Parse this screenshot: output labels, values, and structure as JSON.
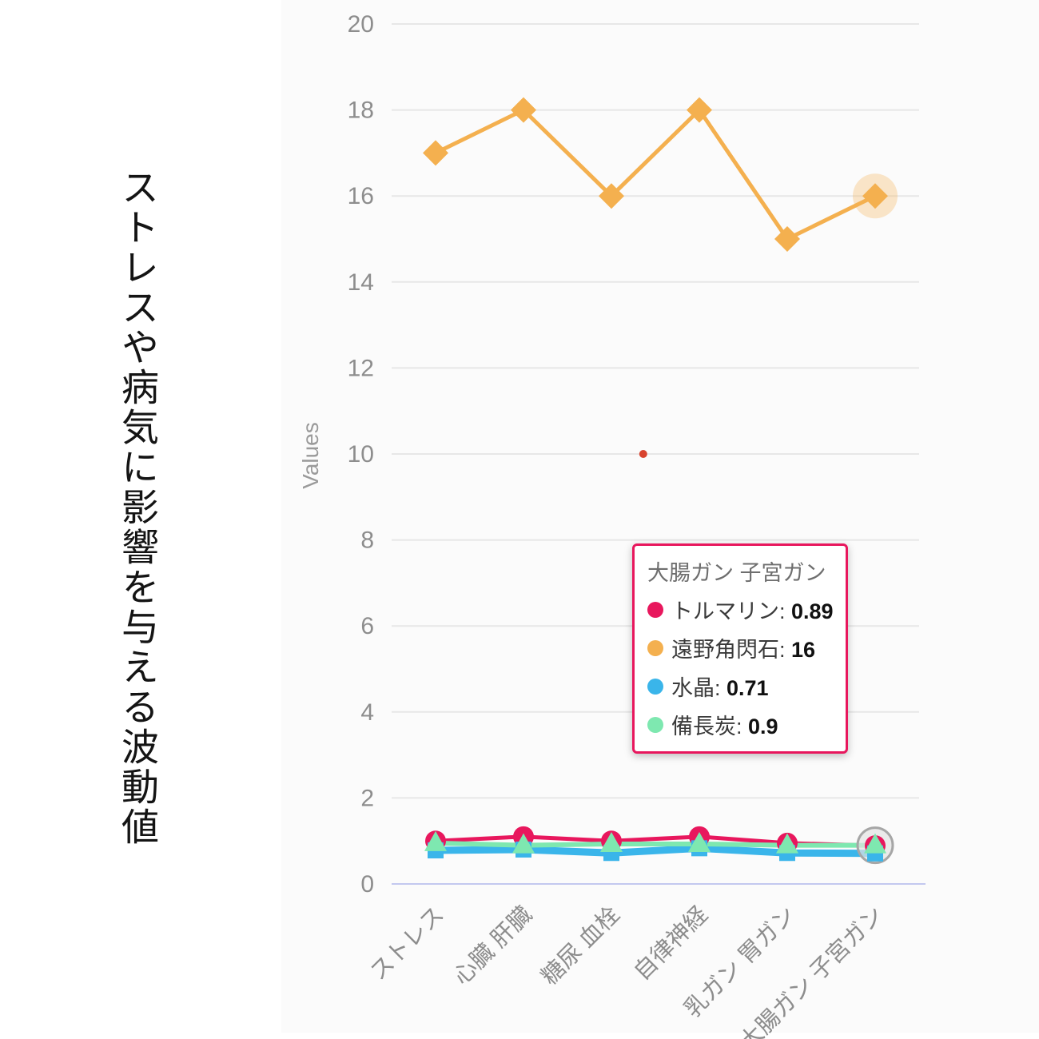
{
  "page_title": "ストレスや病気に影響を与える波動値",
  "chart_data": {
    "type": "line",
    "title": "",
    "ylabel": "Values",
    "xlabel": "",
    "ylim": [
      0,
      20
    ],
    "yticks": [
      0,
      2,
      4,
      6,
      8,
      10,
      12,
      14,
      16,
      18,
      20
    ],
    "grid": true,
    "legend_position": "none",
    "categories": [
      "ストレス",
      "心臓 肝臓",
      "糖尿 血栓",
      "自律神経",
      "乳ガン 胃ガン",
      "大腸ガン 子宮ガン"
    ],
    "series": [
      {
        "name": "トルマリン",
        "color": "#e8175d",
        "marker": "circle",
        "line_width": 5,
        "values": [
          1.0,
          1.1,
          1.0,
          1.1,
          0.95,
          0.89
        ]
      },
      {
        "name": "遠野角閃石",
        "color": "#f4b04f",
        "marker": "diamond",
        "line_width": 5,
        "values": [
          17,
          18,
          16,
          18,
          15,
          16
        ],
        "highlight_last": true
      },
      {
        "name": "水晶",
        "color": "#3ab5ea",
        "marker": "square",
        "line_width": 9,
        "values": [
          0.78,
          0.8,
          0.72,
          0.83,
          0.72,
          0.71
        ]
      },
      {
        "name": "備長炭",
        "color": "#7ee8b0",
        "marker": "triangle",
        "line_width": 6,
        "values": [
          0.95,
          0.9,
          0.93,
          0.93,
          0.9,
          0.9
        ],
        "ring_last": true
      }
    ],
    "annotation_dot": {
      "x_frac": 0.477,
      "value": 10,
      "color": "#d8432e"
    },
    "tooltip": {
      "title": "大腸ガン 子宮ガン",
      "rows": [
        {
          "label": "トルマリン",
          "value": "0.89",
          "color": "#e8175d"
        },
        {
          "label": "遠野角閃石",
          "value": "16",
          "color": "#f4b04f"
        },
        {
          "label": "水晶",
          "value": "0.71",
          "color": "#3ab5ea"
        },
        {
          "label": "備長炭",
          "value": "0.9",
          "color": "#7ee8b0"
        }
      ]
    }
  }
}
